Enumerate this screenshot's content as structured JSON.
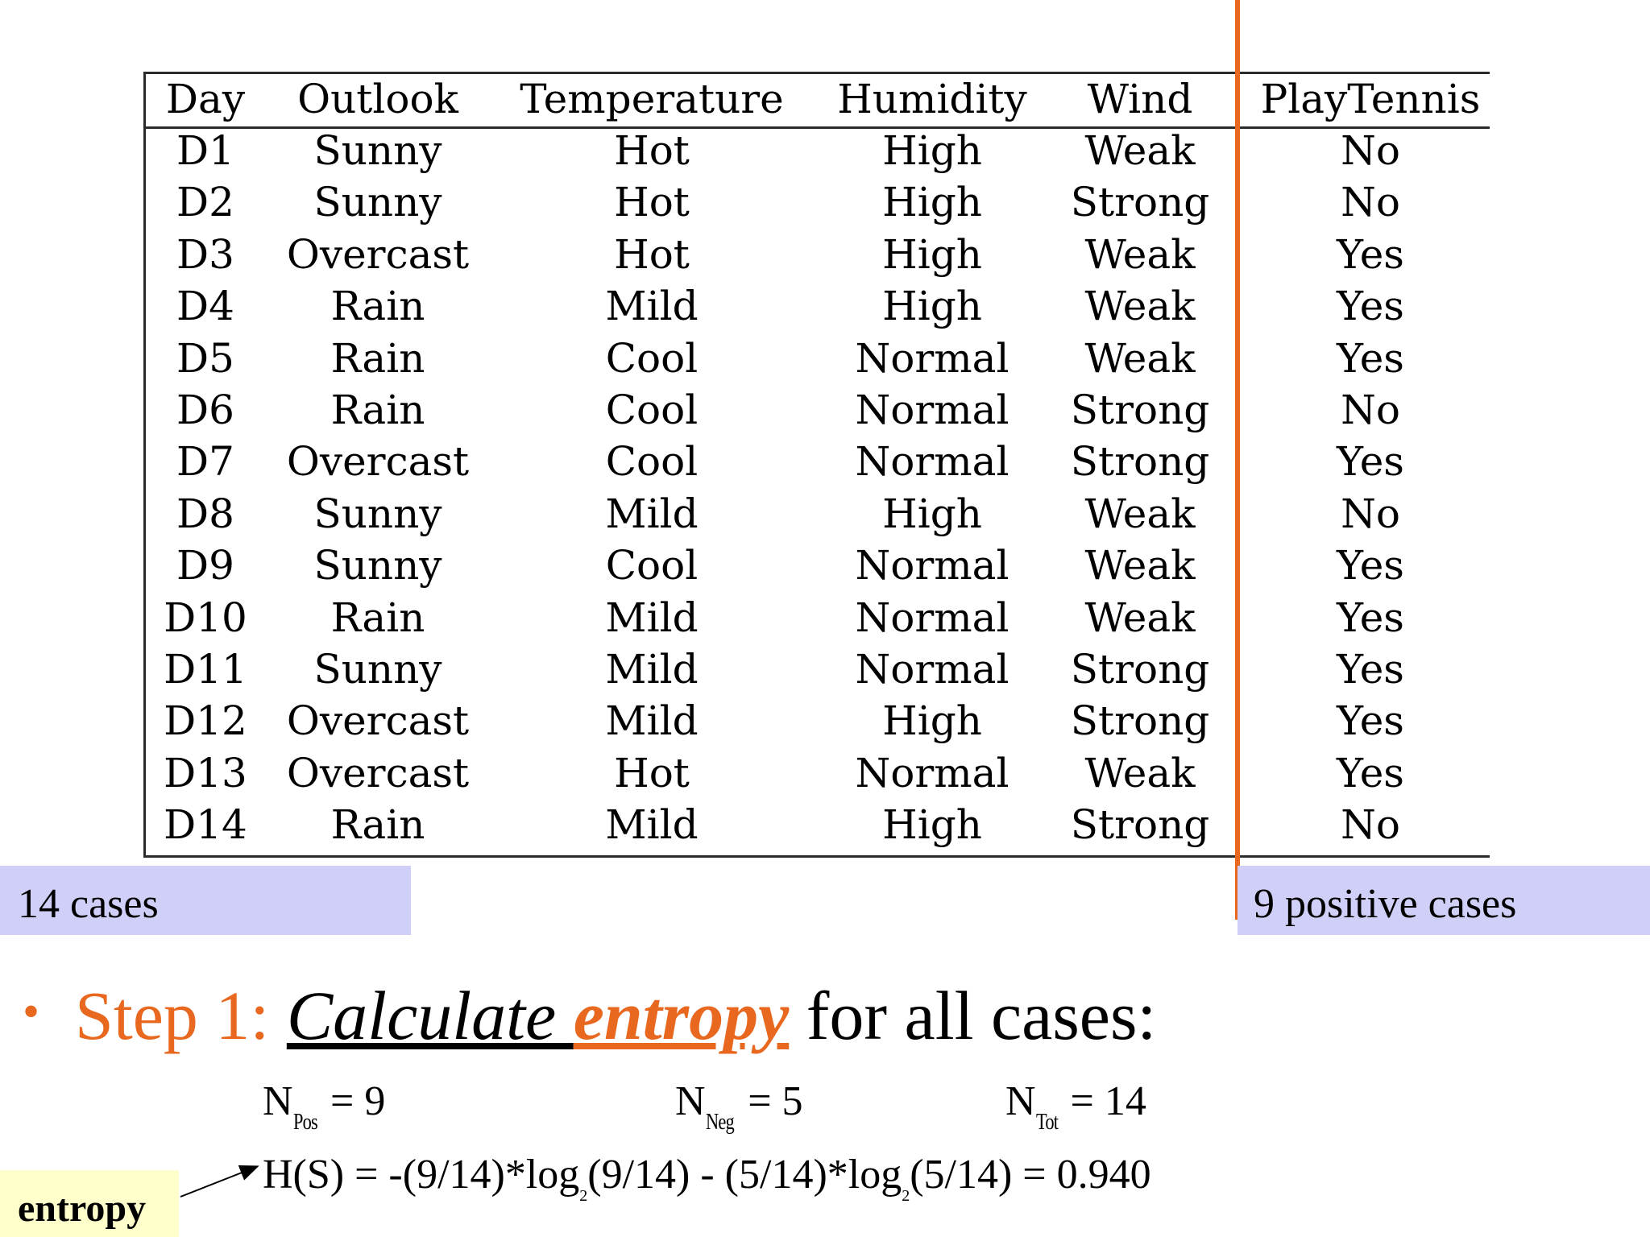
{
  "table": {
    "headers": [
      "Day",
      "Outlook",
      "Temperature",
      "Humidity",
      "Wind",
      "PlayTennis"
    ],
    "rows": [
      [
        "D1",
        "Sunny",
        "Hot",
        "High",
        "Weak",
        "No"
      ],
      [
        "D2",
        "Sunny",
        "Hot",
        "High",
        "Strong",
        "No"
      ],
      [
        "D3",
        "Overcast",
        "Hot",
        "High",
        "Weak",
        "Yes"
      ],
      [
        "D4",
        "Rain",
        "Mild",
        "High",
        "Weak",
        "Yes"
      ],
      [
        "D5",
        "Rain",
        "Cool",
        "Normal",
        "Weak",
        "Yes"
      ],
      [
        "D6",
        "Rain",
        "Cool",
        "Normal",
        "Strong",
        "No"
      ],
      [
        "D7",
        "Overcast",
        "Cool",
        "Normal",
        "Strong",
        "Yes"
      ],
      [
        "D8",
        "Sunny",
        "Mild",
        "High",
        "Weak",
        "No"
      ],
      [
        "D9",
        "Sunny",
        "Cool",
        "Normal",
        "Weak",
        "Yes"
      ],
      [
        "D10",
        "Rain",
        "Mild",
        "Normal",
        "Weak",
        "Yes"
      ],
      [
        "D11",
        "Sunny",
        "Mild",
        "Normal",
        "Strong",
        "Yes"
      ],
      [
        "D12",
        "Overcast",
        "Mild",
        "High",
        "Strong",
        "Yes"
      ],
      [
        "D13",
        "Overcast",
        "Hot",
        "Normal",
        "Weak",
        "Yes"
      ],
      [
        "D14",
        "Rain",
        "Mild",
        "High",
        "Strong",
        "No"
      ]
    ]
  },
  "callouts": {
    "left": "14 cases",
    "right": "9 positive cases"
  },
  "step": {
    "bullet": "•",
    "prefix": "Step 1: ",
    "calculate": "Calculate ",
    "entropy": "entropy",
    "suffix": " for all cases:"
  },
  "counts": {
    "n_letter": "N",
    "pos_sub": "Pos",
    "pos_value": " = 9",
    "neg_sub": "Neg",
    "neg_value": " = 5",
    "tot_sub": "Tot",
    "tot_value": " = 14"
  },
  "formula": {
    "part1": "H(S) = -(9/14)*log",
    "base1": "2",
    "part2": "(9/14) - (5/14)*log",
    "base2": "2",
    "part3": "(5/14) = 0.940"
  },
  "label": "entropy",
  "colors": {
    "accent_orange": "#e8681f",
    "callout_bg": "#cfcff8",
    "label_bg": "#ffffcc"
  }
}
